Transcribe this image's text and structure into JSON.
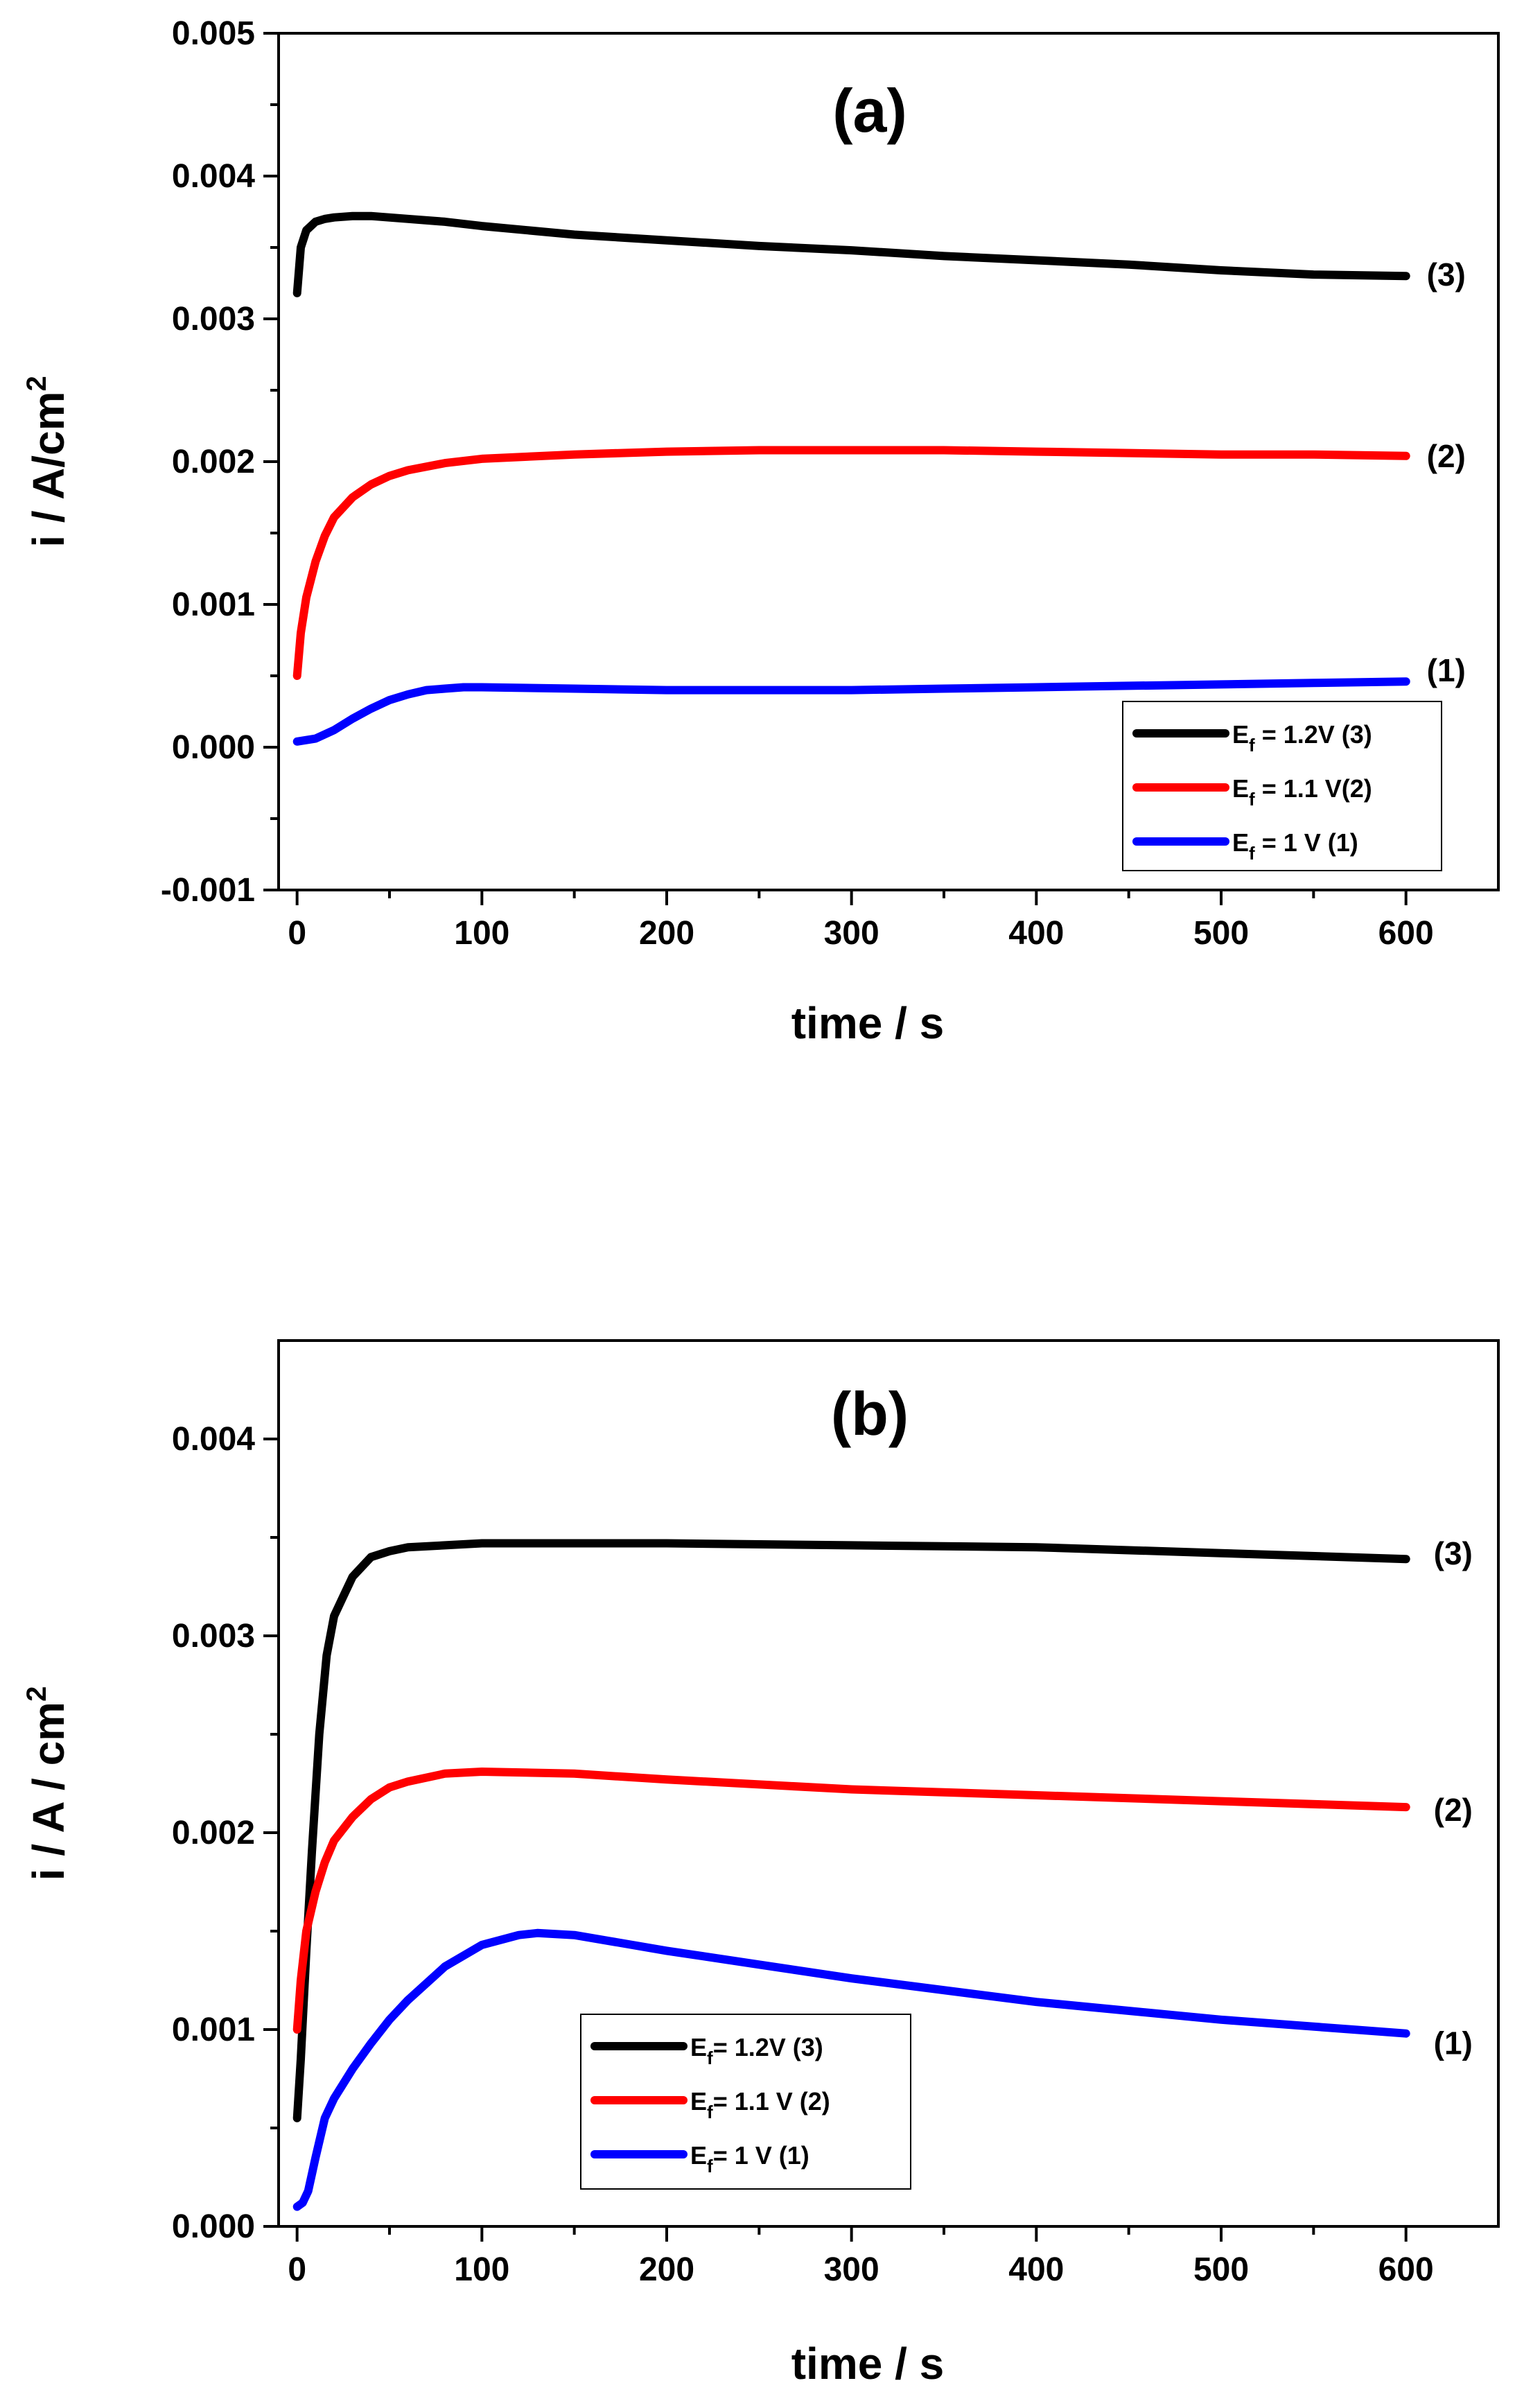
{
  "chart_data": [
    {
      "type": "line",
      "panel": "a",
      "title": "(a)",
      "xlabel": "time / s",
      "ylabel_main": "i / A/cm",
      "ylabel_sup": "2",
      "xlim": [
        -10,
        650
      ],
      "ylim": [
        -0.001,
        0.005
      ],
      "xticks": [
        0,
        100,
        200,
        300,
        400,
        500,
        600
      ],
      "yticks": [
        -0.001,
        0.0,
        0.001,
        0.002,
        0.003,
        0.004,
        0.005
      ],
      "ytick_labels": [
        "-0.001",
        "0.000",
        "0.001",
        "0.002",
        "0.003",
        "0.004",
        "0.005"
      ],
      "xtick_labels": [
        "0",
        "100",
        "200",
        "300",
        "400",
        "500",
        "600"
      ],
      "grid": false,
      "legend_position": "bottom-right",
      "series": [
        {
          "name": "E_f = 1.2V (3)",
          "legend_main": "E",
          "legend_sub": "f",
          "legend_rest": " = 1.2V (3)",
          "end_label": "(3)",
          "color": "#000000",
          "x": [
            0,
            2,
            5,
            10,
            15,
            20,
            30,
            40,
            60,
            80,
            100,
            150,
            200,
            250,
            300,
            350,
            400,
            450,
            500,
            550,
            600
          ],
          "y": [
            0.00318,
            0.0035,
            0.00362,
            0.00368,
            0.0037,
            0.00371,
            0.00372,
            0.00372,
            0.0037,
            0.00368,
            0.00365,
            0.00359,
            0.00355,
            0.00351,
            0.00348,
            0.00344,
            0.00341,
            0.00338,
            0.00334,
            0.00331,
            0.0033
          ]
        },
        {
          "name": "E_f = 1.1 V(2)",
          "legend_main": "E",
          "legend_sub": "f",
          "legend_rest": " = 1.1 V(2)",
          "end_label": "(2)",
          "color": "#ff0000",
          "x": [
            0,
            2,
            5,
            10,
            15,
            20,
            30,
            40,
            50,
            60,
            80,
            100,
            150,
            200,
            250,
            300,
            350,
            400,
            450,
            500,
            550,
            600
          ],
          "y": [
            0.0005,
            0.0008,
            0.00105,
            0.0013,
            0.00148,
            0.00161,
            0.00175,
            0.00184,
            0.0019,
            0.00194,
            0.00199,
            0.00202,
            0.00205,
            0.00207,
            0.00208,
            0.00208,
            0.00208,
            0.00207,
            0.00206,
            0.00205,
            0.00205,
            0.00204
          ]
        },
        {
          "name": "E_f = 1 V (1)",
          "legend_main": "E",
          "legend_sub": "f",
          "legend_rest": " = 1 V   (1)",
          "end_label": "(1)",
          "color": "#0000ff",
          "x": [
            0,
            10,
            20,
            30,
            40,
            50,
            60,
            70,
            80,
            90,
            100,
            150,
            200,
            250,
            300,
            350,
            400,
            450,
            500,
            550,
            600
          ],
          "y": [
            4e-05,
            6e-05,
            0.00012,
            0.0002,
            0.00027,
            0.00033,
            0.00037,
            0.0004,
            0.00041,
            0.00042,
            0.00042,
            0.00041,
            0.0004,
            0.0004,
            0.0004,
            0.00041,
            0.00042,
            0.00043,
            0.00044,
            0.00045,
            0.00046
          ]
        }
      ]
    },
    {
      "type": "line",
      "panel": "b",
      "title": "(b)",
      "xlabel": "time / s",
      "ylabel_main": "i / A / cm",
      "ylabel_sup": "2",
      "xlim": [
        -10,
        650
      ],
      "ylim": [
        0.0,
        0.0045
      ],
      "xticks": [
        0,
        100,
        200,
        300,
        400,
        500,
        600
      ],
      "yticks": [
        0.0,
        0.001,
        0.002,
        0.003,
        0.004
      ],
      "ytick_labels": [
        "0.000",
        "0.001",
        "0.002",
        "0.003",
        "0.004"
      ],
      "xtick_labels": [
        "0",
        "100",
        "200",
        "300",
        "400",
        "500",
        "600"
      ],
      "grid": false,
      "legend_position": "bottom-center",
      "series": [
        {
          "name": "E_f= 1.2V (3)",
          "legend_main": "E",
          "legend_sub": "f",
          "legend_rest": "= 1.2V (3)",
          "end_label": "(3)",
          "color": "#000000",
          "x": [
            0,
            2,
            5,
            8,
            12,
            16,
            20,
            25,
            30,
            40,
            50,
            60,
            80,
            100,
            150,
            200,
            300,
            400,
            500,
            600
          ],
          "y": [
            0.00055,
            0.00085,
            0.0014,
            0.0019,
            0.0025,
            0.0029,
            0.0031,
            0.0032,
            0.0033,
            0.0034,
            0.00343,
            0.00345,
            0.00346,
            0.00347,
            0.00347,
            0.00347,
            0.00346,
            0.00345,
            0.00342,
            0.00339
          ]
        },
        {
          "name": "E_f= 1.1 V (2)",
          "legend_main": "E",
          "legend_sub": "f",
          "legend_rest": "= 1.1 V (2)",
          "end_label": "(2)",
          "color": "#ff0000",
          "x": [
            0,
            2,
            5,
            10,
            15,
            20,
            30,
            40,
            50,
            60,
            80,
            100,
            150,
            200,
            300,
            400,
            500,
            600
          ],
          "y": [
            0.001,
            0.00125,
            0.0015,
            0.0017,
            0.00185,
            0.00196,
            0.00208,
            0.00217,
            0.00223,
            0.00226,
            0.0023,
            0.00231,
            0.0023,
            0.00227,
            0.00222,
            0.00219,
            0.00216,
            0.00213
          ]
        },
        {
          "name": "E_f= 1 V (1)",
          "legend_main": "E",
          "legend_sub": "f",
          "legend_rest": "= 1 V (1)",
          "end_label": "(1)",
          "color": "#0000ff",
          "x": [
            0,
            3,
            6,
            10,
            15,
            20,
            30,
            40,
            50,
            60,
            80,
            100,
            120,
            130,
            150,
            200,
            250,
            300,
            400,
            500,
            600
          ],
          "y": [
            0.0001,
            0.00012,
            0.00018,
            0.00035,
            0.00055,
            0.00065,
            0.0008,
            0.00093,
            0.00105,
            0.00115,
            0.00132,
            0.00143,
            0.00148,
            0.00149,
            0.00148,
            0.0014,
            0.00133,
            0.00126,
            0.00114,
            0.00105,
            0.00098
          ]
        }
      ]
    }
  ]
}
